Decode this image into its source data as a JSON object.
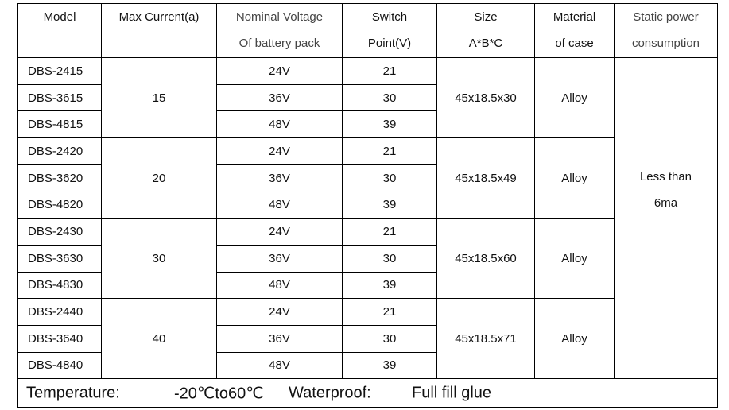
{
  "header": [
    {
      "lines": [
        "Model"
      ]
    },
    {
      "lines": [
        "Max Current(a)"
      ]
    },
    {
      "lines": [
        "Nominal Voltage",
        "Of battery pack"
      ]
    },
    {
      "lines": [
        "Switch",
        "Point(V)"
      ]
    },
    {
      "lines": [
        "Size",
        "A*B*C"
      ]
    },
    {
      "lines": [
        "Material",
        "of case"
      ]
    },
    {
      "lines": [
        "Static power",
        "consumption"
      ]
    }
  ],
  "groups": [
    {
      "current": "15",
      "size": "45x18.5x30",
      "material": "Alloy",
      "rows": [
        [
          "DBS-2415",
          "24V",
          "21"
        ],
        [
          "DBS-3615",
          "36V",
          "30"
        ],
        [
          "DBS-4815",
          "48V",
          "39"
        ]
      ]
    },
    {
      "current": "20",
      "size": "45x18.5x49",
      "material": "Alloy",
      "rows": [
        [
          "DBS-2420",
          "24V",
          "21"
        ],
        [
          "DBS-3620",
          "36V",
          "30"
        ],
        [
          "DBS-4820",
          "48V",
          "39"
        ]
      ]
    },
    {
      "current": "30",
      "size": "45x18.5x60",
      "material": "Alloy",
      "rows": [
        [
          "DBS-2430",
          "24V",
          "21"
        ],
        [
          "DBS-3630",
          "36V",
          "30"
        ],
        [
          "DBS-4830",
          "48V",
          "39"
        ]
      ]
    },
    {
      "current": "40",
      "size": "45x18.5x71",
      "material": "Alloy",
      "rows": [
        [
          "DBS-2440",
          "24V",
          "21"
        ],
        [
          "DBS-3640",
          "36V",
          "30"
        ],
        [
          "DBS-4840",
          "48V",
          "39"
        ]
      ]
    }
  ],
  "static_power": [
    "Less than",
    "6ma"
  ],
  "footer": [
    "Temperature:",
    "-20℃to60℃",
    "Waterproof:",
    "Full fill glue"
  ]
}
